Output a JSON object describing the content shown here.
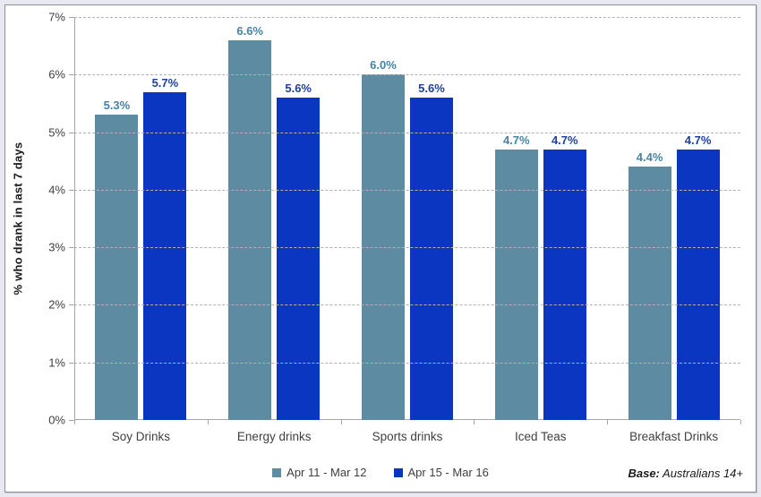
{
  "chart_data": {
    "type": "bar",
    "categories": [
      "Soy Drinks",
      "Energy drinks",
      "Sports drinks",
      "Iced Teas",
      "Breakfast Drinks"
    ],
    "series": [
      {
        "name": "Apr 11 - Mar 12",
        "values": [
          5.3,
          6.6,
          6.0,
          4.7,
          4.4
        ],
        "bar_color": "#5d8ca2",
        "label_color": "#4683a5"
      },
      {
        "name": "Apr 15 - Mar 16",
        "values": [
          5.7,
          5.6,
          5.6,
          4.7,
          4.7
        ],
        "bar_color": "#0a36c2",
        "label_color": "#1e3f9f"
      }
    ],
    "title": "",
    "xlabel": "",
    "ylabel": "% who drank in last 7 days",
    "ylim": [
      0,
      7
    ],
    "ytick_step": 1,
    "ytick_suffix": "%",
    "value_label_suffix": "%",
    "grid": "horizontal-dashed",
    "legend_position": "bottom-center"
  },
  "footer": {
    "base_label": "Base:",
    "base_value": " Australians 14+"
  }
}
